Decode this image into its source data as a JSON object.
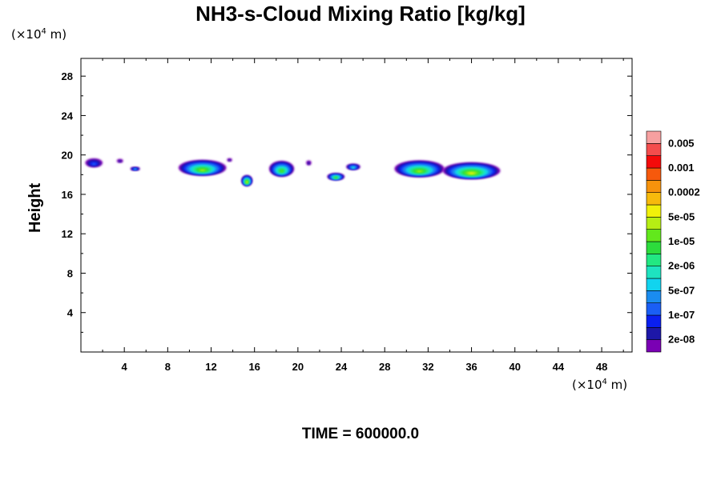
{
  "chart_data": {
    "type": "heatmap",
    "title": "NH3-s-Cloud Mixing Ratio [kg/kg]",
    "ylabel": "Height",
    "x_unit": "(×10",
    "x_unit_exp": "4",
    "x_unit_tail": " m)",
    "y_unit": "(×10",
    "y_unit_exp": "4",
    "y_unit_tail": " m)",
    "xlim": [
      0,
      50.8
    ],
    "ylim": [
      0,
      29.8
    ],
    "x_ticks": [
      4,
      8,
      12,
      16,
      20,
      24,
      28,
      32,
      36,
      40,
      44,
      48
    ],
    "x_tick_labels": [
      "4",
      "8",
      "12",
      "16",
      "20",
      "24",
      "28",
      "32",
      "36",
      "40",
      "44",
      "48"
    ],
    "y_ticks": [
      4,
      8,
      12,
      16,
      20,
      24,
      28
    ],
    "y_tick_labels": [
      "4",
      "8",
      "12",
      "16",
      "20",
      "24",
      "28"
    ],
    "colorbar": {
      "colors": [
        "#7a00b4",
        "#1d17a8",
        "#0a1ff0",
        "#1a5ef5",
        "#1a8cf0",
        "#11d4ef",
        "#1ee3c0",
        "#22e882",
        "#2cdc3c",
        "#62e81c",
        "#b6ee14",
        "#f1f10a",
        "#f7ba0c",
        "#f7930c",
        "#f6590c",
        "#f40a0a",
        "#f44d4d",
        "#f7a0a0"
      ],
      "labels": [
        "2e-08",
        "1e-07",
        "5e-07",
        "2e-06",
        "1e-05",
        "5e-05",
        "0.0002",
        "0.001",
        "0.005"
      ]
    },
    "clouds": [
      {
        "x": 1.2,
        "y": 19.2,
        "w": 1.6,
        "h": 0.9,
        "level": 3
      },
      {
        "x": 3.6,
        "y": 19.4,
        "w": 0.6,
        "h": 0.4,
        "level": 1
      },
      {
        "x": 5.0,
        "y": 18.6,
        "w": 0.9,
        "h": 0.35,
        "level": 5
      },
      {
        "x": 11.2,
        "y": 18.7,
        "w": 4.4,
        "h": 1.6,
        "level": 10
      },
      {
        "x": 13.7,
        "y": 19.5,
        "w": 0.5,
        "h": 0.35,
        "level": 1
      },
      {
        "x": 15.3,
        "y": 17.4,
        "w": 1.0,
        "h": 1.1,
        "level": 11
      },
      {
        "x": 18.5,
        "y": 18.6,
        "w": 2.3,
        "h": 1.6,
        "level": 9
      },
      {
        "x": 21.0,
        "y": 19.2,
        "w": 0.5,
        "h": 0.5,
        "level": 1
      },
      {
        "x": 23.5,
        "y": 17.8,
        "w": 1.6,
        "h": 0.7,
        "level": 9
      },
      {
        "x": 25.1,
        "y": 18.8,
        "w": 1.3,
        "h": 0.6,
        "level": 6
      },
      {
        "x": 31.2,
        "y": 18.6,
        "w": 4.6,
        "h": 1.7,
        "level": 10
      },
      {
        "x": 36.0,
        "y": 18.4,
        "w": 5.3,
        "h": 1.7,
        "level": 11
      }
    ]
  },
  "footer": {
    "time_label": "TIME = 600000.0"
  }
}
